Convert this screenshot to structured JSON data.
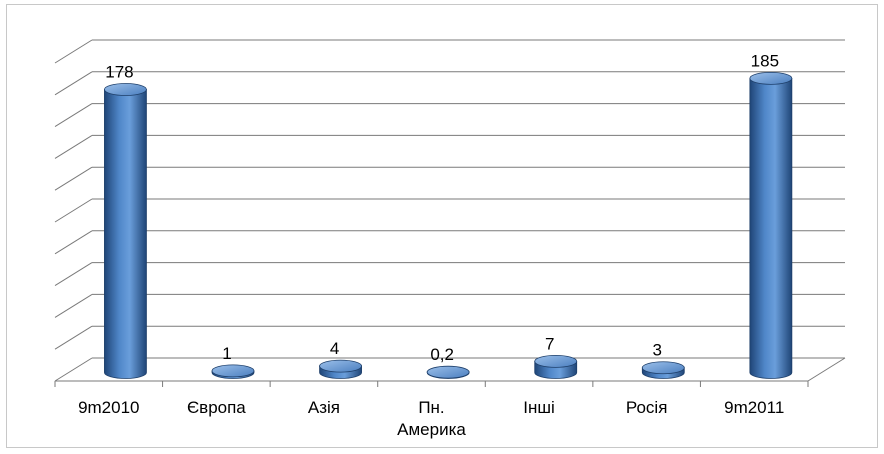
{
  "chart_data": {
    "type": "bar",
    "title": "",
    "xlabel": "",
    "ylabel": "",
    "categories": [
      "9m2010",
      "Європа",
      "Азія",
      "Пн. Америка",
      "Інші",
      "Росія",
      "9m2011"
    ],
    "category_lines": [
      [
        "9m2010"
      ],
      [
        "Європа"
      ],
      [
        "Азія"
      ],
      [
        "Пн.",
        "Америка"
      ],
      [
        "Інші"
      ],
      [
        "Росія"
      ],
      [
        "9m2011"
      ]
    ],
    "values": [
      178,
      1,
      4,
      0.2,
      7,
      3,
      185
    ],
    "value_labels": [
      "178",
      "1",
      "4",
      "0,2",
      "7",
      "3",
      "185"
    ],
    "ylim": [
      0,
      200
    ],
    "grid": true,
    "legend": "none",
    "bar_color": "#4a7ebf",
    "bar_dark": "#23497a",
    "bar_light": "#8fb6e6"
  }
}
